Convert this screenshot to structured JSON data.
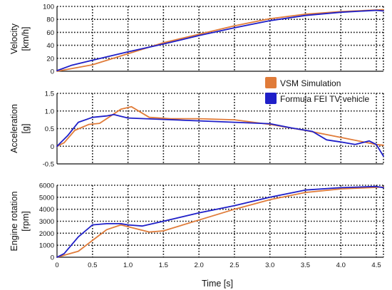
{
  "chart_data": [
    {
      "type": "line",
      "ylabel": [
        "Velocity",
        "[km/h]"
      ],
      "xlim": [
        0,
        4.6
      ],
      "ylim": [
        0,
        100
      ],
      "yticks": [
        0,
        20,
        40,
        60,
        80,
        100
      ],
      "grid": true,
      "series": [
        {
          "name": "VSM Simulation",
          "color": "#e07b39",
          "x": [
            0,
            0.5,
            1.0,
            1.5,
            2.0,
            2.5,
            3.0,
            3.5,
            4.0,
            4.6
          ],
          "y": [
            0,
            10,
            27,
            44,
            57,
            70,
            81,
            88,
            92,
            95
          ]
        },
        {
          "name": "Formula FEI TV vehicle",
          "color": "#1f1fc8",
          "x": [
            0,
            0.2,
            0.5,
            1.0,
            1.5,
            2.0,
            2.5,
            3.0,
            3.5,
            4.0,
            4.5,
            4.6
          ],
          "y": [
            1,
            9,
            17,
            30,
            42,
            55,
            67,
            78,
            86,
            91,
            94,
            93
          ]
        }
      ]
    },
    {
      "type": "line",
      "ylabel": [
        "Acceleration",
        "[g]"
      ],
      "xlim": [
        0,
        4.6
      ],
      "ylim": [
        -0.5,
        1.5
      ],
      "yticks": [
        -0.5,
        0,
        0.5,
        1.0,
        1.5
      ],
      "yticklabels": [
        "-0.5",
        "0",
        "0.5",
        "1.0",
        "1.5"
      ],
      "grid": true,
      "series": [
        {
          "name": "VSM Simulation",
          "color": "#e07b39",
          "x": [
            0,
            0.1,
            0.25,
            0.45,
            0.6,
            0.75,
            0.9,
            1.05,
            1.15,
            1.3,
            1.6,
            2.0,
            2.5,
            3.0,
            3.5,
            4.0,
            4.5,
            4.6
          ],
          "y": [
            0,
            0.1,
            0.45,
            0.62,
            0.65,
            0.85,
            1.05,
            1.12,
            1.0,
            0.82,
            0.78,
            0.78,
            0.75,
            0.62,
            0.45,
            0.25,
            0.05,
            0.03
          ]
        },
        {
          "name": "Formula FEI TV vehicle",
          "color": "#1f1fc8",
          "x": [
            0,
            0.15,
            0.3,
            0.5,
            0.7,
            0.8,
            0.9,
            1.0,
            1.5,
            2.0,
            2.5,
            3.0,
            3.3,
            3.6,
            3.8,
            4.0,
            4.2,
            4.4,
            4.5,
            4.6
          ],
          "y": [
            0,
            0.3,
            0.68,
            0.82,
            0.86,
            0.9,
            0.85,
            0.8,
            0.76,
            0.72,
            0.68,
            0.64,
            0.52,
            0.42,
            0.18,
            0.12,
            0.05,
            0.15,
            0.05,
            -0.28
          ]
        }
      ]
    },
    {
      "type": "line",
      "ylabel": [
        "Engine rotation",
        "[rpm]"
      ],
      "xlabel": "Time [s]",
      "xlim": [
        0,
        4.6
      ],
      "xticks": [
        0,
        0.5,
        1.0,
        1.5,
        2.0,
        2.5,
        3.0,
        3.5,
        4.0,
        4.5
      ],
      "xticklabels": [
        "0",
        "0.5",
        "1.0",
        "1.5",
        "2.0",
        "2.5",
        "3.0",
        "3.5",
        "4.0",
        "4.5"
      ],
      "ylim": [
        0,
        6000
      ],
      "yticks": [
        0,
        1000,
        2000,
        3000,
        4000,
        5000,
        6000
      ],
      "grid": true,
      "series": [
        {
          "name": "VSM Simulation",
          "color": "#e07b39",
          "x": [
            0,
            0.3,
            0.5,
            0.7,
            0.9,
            1.1,
            1.3,
            1.5,
            2.0,
            2.5,
            3.0,
            3.5,
            4.0,
            4.6
          ],
          "y": [
            0,
            500,
            1400,
            2300,
            2700,
            2400,
            2100,
            2200,
            3100,
            4000,
            4800,
            5400,
            5700,
            5850
          ]
        },
        {
          "name": "Formula FEI TV vehicle",
          "color": "#1f1fc8",
          "x": [
            0,
            0.1,
            0.3,
            0.5,
            0.7,
            0.9,
            1.0,
            1.2,
            1.5,
            2.0,
            2.5,
            3.0,
            3.5,
            4.0,
            4.5,
            4.6
          ],
          "y": [
            0,
            300,
            1700,
            2700,
            2800,
            2800,
            2700,
            2600,
            3000,
            3700,
            4300,
            5000,
            5600,
            5800,
            5900,
            5800
          ]
        }
      ]
    }
  ],
  "legend": {
    "entries": [
      {
        "label": "VSM Simulation",
        "color": "#e07b39"
      },
      {
        "label": "Formula FEI TV vehicle",
        "color": "#1f1fc8"
      }
    ]
  }
}
